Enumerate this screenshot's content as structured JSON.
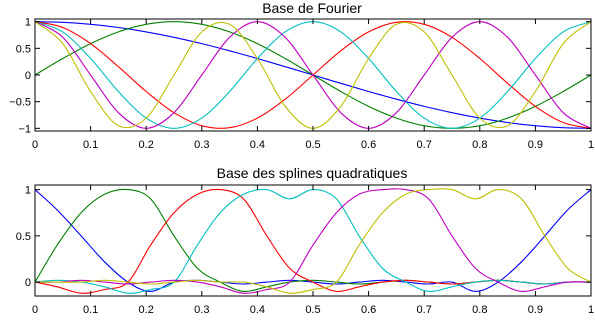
{
  "chart_data": [
    {
      "type": "line",
      "title": "Base de Fourier",
      "xlim": [
        0,
        1
      ],
      "ylim": [
        -1.05,
        1.05
      ],
      "x_ticks": [
        "0",
        "0.1",
        "0.2",
        "0.3",
        "0.4",
        "0.5",
        "0.6",
        "0.7",
        "0.8",
        "0.9",
        "1"
      ],
      "y_ticks": [
        "−1",
        "−0.5",
        "0",
        "0.5",
        "1"
      ],
      "grid": false,
      "x": [
        0,
        0.05,
        0.1,
        0.15,
        0.2,
        0.25,
        0.3,
        0.35,
        0.4,
        0.45,
        0.5,
        0.55,
        0.6,
        0.65,
        0.7,
        0.75,
        0.8,
        0.85,
        0.9,
        0.95,
        1
      ],
      "series": [
        {
          "color": "#0000ff",
          "values": [
            1,
            0.988,
            0.951,
            0.891,
            0.809,
            0.707,
            0.588,
            0.454,
            0.309,
            0.156,
            0,
            -0.156,
            -0.309,
            -0.454,
            -0.588,
            -0.707,
            -0.809,
            -0.891,
            -0.951,
            -0.988,
            -1
          ]
        },
        {
          "color": "#008000",
          "values": [
            0,
            0.309,
            0.588,
            0.809,
            0.951,
            1,
            0.951,
            0.809,
            0.588,
            0.309,
            0,
            -0.309,
            -0.588,
            -0.809,
            -0.951,
            -1,
            -0.951,
            -0.809,
            -0.588,
            -0.309,
            0
          ]
        },
        {
          "color": "#ff0000",
          "values": [
            1,
            0.891,
            0.588,
            0.156,
            -0.309,
            -0.707,
            -0.951,
            -0.988,
            -0.809,
            -0.454,
            0,
            0.454,
            0.809,
            0.988,
            0.951,
            0.707,
            0.309,
            -0.156,
            -0.588,
            -0.891,
            -1
          ]
        },
        {
          "color": "#00bfbf",
          "values": [
            1,
            0.809,
            0.309,
            -0.309,
            -0.809,
            -1,
            -0.809,
            -0.309,
            0.309,
            0.809,
            1,
            0.809,
            0.309,
            -0.309,
            -0.809,
            -1,
            -0.809,
            -0.309,
            0.309,
            0.809,
            1
          ]
        },
        {
          "color": "#bf00bf",
          "values": [
            1,
            0.707,
            0,
            -0.707,
            -1,
            -0.707,
            0,
            0.707,
            1,
            0.707,
            0,
            -0.707,
            -1,
            -0.707,
            0,
            0.707,
            1,
            0.707,
            0,
            -0.707,
            -1
          ]
        },
        {
          "color": "#bfbf00",
          "values": [
            1,
            0.588,
            -0.309,
            -0.951,
            -0.809,
            0,
            0.809,
            0.951,
            0.309,
            -0.588,
            -1,
            -0.588,
            0.309,
            0.951,
            0.809,
            0,
            -0.809,
            -0.951,
            -0.309,
            0.588,
            1
          ]
        }
      ]
    },
    {
      "type": "line",
      "title": "Base des splines quadratiques",
      "xlim": [
        0,
        1
      ],
      "ylim": [
        -0.15,
        1.05
      ],
      "x_ticks": [
        "0",
        "0.1",
        "0.2",
        "0.3",
        "0.4",
        "0.5",
        "0.6",
        "0.7",
        "0.8",
        "0.9",
        "1"
      ],
      "y_ticks": [
        "0",
        "0.5",
        "1"
      ],
      "grid": false,
      "x": [
        0,
        0.04,
        0.083,
        0.125,
        0.167,
        0.208,
        0.25,
        0.292,
        0.333,
        0.375,
        0.417,
        0.458,
        0.5,
        0.542,
        0.583,
        0.625,
        0.667,
        0.708,
        0.75,
        0.792,
        0.833,
        0.875,
        0.917,
        0.958,
        1
      ],
      "series": [
        {
          "color": "#0000ff",
          "values": [
            1,
            0.78,
            0.5,
            0.22,
            0,
            -0.1,
            0,
            0.02,
            0,
            -0.02,
            0,
            0.02,
            0,
            -0.02,
            0,
            0.02,
            0,
            -0.02,
            0,
            -0.1,
            0,
            0.22,
            0.5,
            0.78,
            1
          ]
        },
        {
          "color": "#008000",
          "values": [
            0,
            0.4,
            0.75,
            0.95,
            1,
            0.9,
            0.5,
            0.15,
            0,
            -0.1,
            -0.05,
            0,
            0.02,
            0,
            -0.02,
            0,
            0.02,
            0,
            -0.02,
            0,
            0.02,
            0,
            -0.02,
            0,
            0
          ]
        },
        {
          "color": "#ff0000",
          "values": [
            0,
            -0.05,
            -0.12,
            -0.08,
            0,
            0.4,
            0.75,
            0.95,
            1,
            0.9,
            0.5,
            0.15,
            0,
            -0.1,
            -0.05,
            0,
            0.02,
            0,
            -0.02,
            0,
            0.02,
            0,
            -0.02,
            0,
            0
          ]
        },
        {
          "color": "#00bfbf",
          "values": [
            0,
            0.02,
            0,
            -0.05,
            -0.12,
            -0.08,
            0,
            0.4,
            0.75,
            0.95,
            1,
            0.9,
            1,
            0.9,
            0.5,
            0.15,
            0,
            -0.1,
            -0.05,
            0,
            0.02,
            0,
            -0.02,
            0,
            0
          ]
        },
        {
          "color": "#bf00bf",
          "values": [
            0,
            0,
            0.02,
            0,
            -0.02,
            0,
            0.02,
            0,
            -0.05,
            -0.12,
            -0.08,
            0,
            0.4,
            0.75,
            0.95,
            1,
            1,
            0.9,
            0.5,
            0.15,
            0,
            -0.1,
            -0.05,
            0,
            0
          ]
        },
        {
          "color": "#bfbf00",
          "values": [
            0,
            0,
            0,
            0.02,
            0,
            -0.02,
            0,
            0.02,
            0,
            0,
            -0.05,
            -0.12,
            -0.08,
            0,
            0.4,
            0.75,
            0.95,
            1,
            1,
            0.9,
            1,
            0.9,
            0.5,
            0.15,
            0
          ]
        }
      ]
    }
  ]
}
